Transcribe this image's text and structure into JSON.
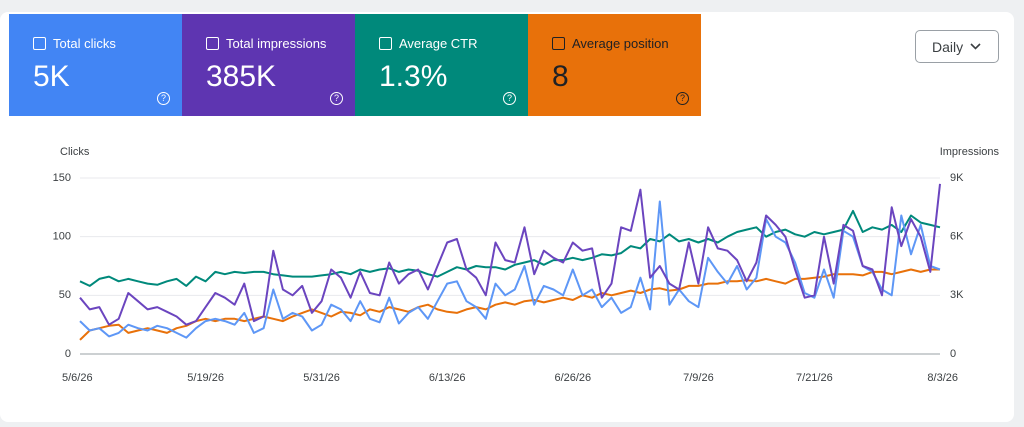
{
  "cards": [
    {
      "label": "Total clicks",
      "value": "5K"
    },
    {
      "label": "Total impressions",
      "value": "385K"
    },
    {
      "label": "Average CTR",
      "value": "1.3%"
    },
    {
      "label": "Average position",
      "value": "8"
    }
  ],
  "dropdown": "Daily",
  "chart_data": {
    "type": "line",
    "ylabel": "Clicks",
    "y2label": "Impressions",
    "categories": [
      "5/6/26",
      null,
      null,
      null,
      null,
      null,
      null,
      null,
      null,
      null,
      null,
      null,
      null,
      "5/19/26",
      null,
      null,
      null,
      null,
      null,
      null,
      null,
      null,
      null,
      null,
      null,
      "5/31/26",
      null,
      null,
      null,
      null,
      null,
      null,
      null,
      null,
      null,
      null,
      null,
      null,
      "6/13/26",
      null,
      null,
      null,
      null,
      null,
      null,
      null,
      null,
      null,
      null,
      null,
      null,
      "6/26/26",
      null,
      null,
      null,
      null,
      null,
      null,
      null,
      null,
      null,
      null,
      null,
      null,
      "7/9/26",
      null,
      null,
      null,
      null,
      null,
      null,
      null,
      null,
      null,
      null,
      null,
      "7/21/26",
      null,
      null,
      null,
      null,
      null,
      null,
      null,
      null,
      null,
      null,
      null,
      null,
      "8/3/26"
    ],
    "ylim": [
      0,
      150
    ],
    "yticks": [
      0,
      50,
      100,
      150
    ],
    "y2lim": [
      0,
      9000
    ],
    "y2ticks": [
      0,
      {
        "value": 3000,
        "label": "3K"
      },
      {
        "value": 6000,
        "label": "6K"
      },
      {
        "value": 9000,
        "label": "9K"
      }
    ],
    "grid": true,
    "series": [
      {
        "name": "Average CTR",
        "color": "#00897b",
        "values": [
          62,
          58,
          64,
          66,
          62,
          64,
          62,
          60,
          59,
          62,
          64,
          58,
          66,
          62,
          70,
          68,
          70,
          69,
          70,
          70,
          68,
          67,
          66,
          66,
          66,
          67,
          68,
          70,
          68,
          72,
          70,
          72,
          73,
          70,
          72,
          71,
          68,
          66,
          70,
          74,
          72,
          75,
          74,
          74,
          72,
          76,
          78,
          80,
          76,
          80,
          80,
          82,
          80,
          82,
          85,
          84,
          86,
          92,
          90,
          98,
          96,
          102,
          96,
          98,
          95,
          98,
          95,
          100,
          104,
          106,
          108,
          100,
          104,
          106,
          102,
          100,
          104,
          102,
          104,
          106,
          122,
          104,
          108,
          106,
          110,
          104,
          118,
          112,
          110,
          108
        ]
      },
      {
        "name": "Average position",
        "color": "#e8710a",
        "values": [
          12,
          20,
          22,
          24,
          25,
          18,
          20,
          22,
          20,
          18,
          22,
          24,
          28,
          30,
          28,
          30,
          30,
          28,
          30,
          32,
          30,
          28,
          32,
          35,
          38,
          35,
          32,
          36,
          35,
          33,
          38,
          36,
          40,
          38,
          36,
          40,
          42,
          38,
          36,
          35,
          38,
          40,
          38,
          42,
          44,
          42,
          45,
          46,
          44,
          46,
          48,
          46,
          50,
          48,
          52,
          50,
          52,
          54,
          52,
          55,
          56,
          54,
          55,
          58,
          58,
          60,
          60,
          62,
          62,
          63,
          62,
          64,
          62,
          60,
          64,
          64,
          65,
          66,
          68,
          68,
          68,
          67,
          70,
          70,
          68,
          70,
          72,
          70,
          72,
          72
        ]
      },
      {
        "name": "Total clicks",
        "color": "#5e97f6",
        "values": [
          28,
          20,
          22,
          15,
          18,
          25,
          22,
          20,
          24,
          22,
          18,
          14,
          22,
          28,
          30,
          28,
          25,
          35,
          18,
          22,
          55,
          30,
          35,
          32,
          20,
          25,
          42,
          38,
          28,
          45,
          30,
          27,
          48,
          26,
          35,
          40,
          30,
          45,
          60,
          62,
          45,
          40,
          30,
          60,
          50,
          55,
          75,
          42,
          58,
          55,
          50,
          72,
          50,
          55,
          40,
          48,
          35,
          40,
          65,
          38,
          130,
          42,
          55,
          45,
          40,
          82,
          70,
          60,
          75,
          55,
          65,
          115,
          100,
          95,
          78,
          52,
          48,
          72,
          48,
          105,
          100,
          75,
          70,
          55,
          50,
          118,
          85,
          110,
          75,
          72
        ]
      },
      {
        "name": "Total impressions",
        "color": "#6b45bf",
        "axis": "y2",
        "values": [
          2880,
          2280,
          2400,
          1500,
          1800,
          3120,
          2700,
          2280,
          2400,
          2160,
          1920,
          1500,
          1680,
          2400,
          3120,
          2880,
          2520,
          3600,
          1680,
          1920,
          5280,
          3300,
          3000,
          3480,
          2100,
          2700,
          4320,
          3900,
          2880,
          4200,
          3120,
          3000,
          4680,
          3600,
          4080,
          4320,
          3300,
          4500,
          5700,
          5880,
          4320,
          3900,
          3000,
          5700,
          4800,
          4680,
          6480,
          4080,
          5280,
          4920,
          4680,
          5700,
          5280,
          5400,
          2880,
          3600,
          6480,
          6300,
          8400,
          3900,
          4500,
          3600,
          3300,
          5700,
          3600,
          6480,
          5400,
          5280,
          4800,
          3720,
          4680,
          7080,
          6600,
          6000,
          4320,
          2880,
          3000,
          6000,
          3600,
          6600,
          6300,
          4500,
          4320,
          3000,
          7500,
          5520,
          6900,
          6000,
          4200,
          8700
        ]
      }
    ]
  }
}
